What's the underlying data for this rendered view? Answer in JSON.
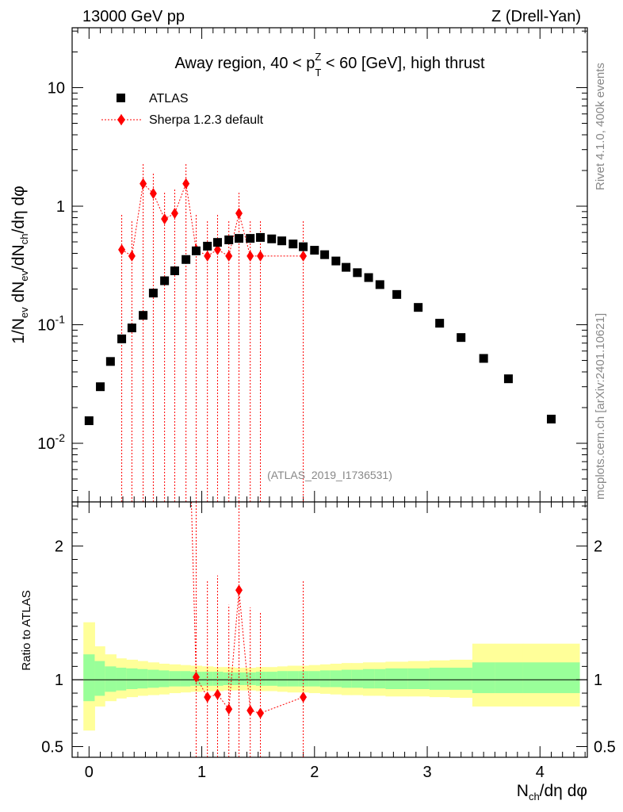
{
  "header": {
    "left": "13000 GeV pp",
    "right": "Z (Drell-Yan)"
  },
  "title": "Away region, 40 < p_T^Z < 60 [GeV], high thrust",
  "title_parts": {
    "pre": "Away region, 40 < p",
    "sup": "Z",
    "sub": "T",
    "post": " < 60 [GeV], high thrust"
  },
  "analysis_id": "(ATLAS_2019_I1736531)",
  "side_labels": {
    "rivet": "Rivet 4.1.0,  400k events",
    "site": "mcplots.cern.ch [arXiv:2401.10621]"
  },
  "legend": {
    "data_label": "ATLAS",
    "mc_label": "Sherpa 1.2.3 default",
    "placement": "top-left"
  },
  "colors": {
    "data": "#000000",
    "mc": "#ff0000",
    "band_inner": "#99ff99",
    "band_outer": "#ffff99"
  },
  "chart_data": [
    {
      "type": "scatter",
      "panel": "main",
      "yscale": "log",
      "xlabel": "N_ch/dη dφ",
      "ylabel": "1/N_ev dN_ev/dN_ch/dη dφ",
      "xlim": [
        -0.15,
        4.42
      ],
      "ylim": [
        0.0032,
        32
      ],
      "ytick_labels": [
        "10^-2",
        "10^-1",
        "1",
        "10"
      ],
      "xtick_labels": [
        "0",
        "1",
        "2",
        "3",
        "4"
      ],
      "series": [
        {
          "name": "ATLAS",
          "x": [
            0.0,
            0.1,
            0.19,
            0.29,
            0.38,
            0.48,
            0.57,
            0.67,
            0.76,
            0.86,
            0.95,
            1.05,
            1.14,
            1.24,
            1.33,
            1.43,
            1.52,
            1.62,
            1.71,
            1.81,
            1.9,
            2.0,
            2.09,
            2.19,
            2.28,
            2.38,
            2.48,
            2.58,
            2.73,
            2.92,
            3.11,
            3.3,
            3.5,
            3.72,
            4.1
          ],
          "y": [
            0.0155,
            0.03,
            0.049,
            0.076,
            0.094,
            0.12,
            0.185,
            0.235,
            0.285,
            0.355,
            0.42,
            0.46,
            0.495,
            0.52,
            0.535,
            0.535,
            0.545,
            0.53,
            0.51,
            0.48,
            0.455,
            0.425,
            0.39,
            0.345,
            0.305,
            0.275,
            0.25,
            0.218,
            0.18,
            0.14,
            0.103,
            0.078,
            0.052,
            0.035,
            0.016
          ]
        },
        {
          "name": "Sherpa 1.2.3 default",
          "x": [
            0.29,
            0.38,
            0.48,
            0.57,
            0.67,
            0.76,
            0.86,
            0.95,
            1.05,
            1.14,
            1.24,
            1.33,
            1.43,
            1.52,
            1.9
          ],
          "y": [
            0.43,
            0.38,
            1.55,
            1.28,
            0.78,
            0.87,
            1.55,
            0.43,
            0.38,
            0.43,
            0.38,
            0.87,
            0.38,
            0.38,
            0.38
          ],
          "err_lo": [
            0.43,
            0.38,
            1.55,
            1.28,
            0.78,
            0.87,
            1.55,
            0.43,
            0.38,
            0.43,
            0.38,
            0.87,
            0.38,
            0.38,
            0.38
          ],
          "err_hi": [
            0.43,
            0.38,
            0.75,
            0.62,
            0.55,
            0.52,
            0.75,
            0.43,
            0.38,
            0.43,
            0.38,
            0.43,
            0.38,
            0.38,
            0.38
          ]
        }
      ]
    },
    {
      "type": "scatter",
      "panel": "ratio",
      "ylabel": "Ratio to ATLAS",
      "xlabel": "N_ch/dη dφ",
      "xlim": [
        -0.15,
        4.42
      ],
      "ylim": [
        0.42,
        2.33
      ],
      "ytick_labels": [
        "0.5",
        "1",
        "2"
      ],
      "reference": 1.0,
      "series": [
        {
          "name": "Sherpa 1.2.3 default",
          "x": [
            0.95,
            1.05,
            1.14,
            1.24,
            1.33,
            1.43,
            1.52,
            1.9
          ],
          "y": [
            1.02,
            0.87,
            0.89,
            0.78,
            1.67,
            0.77,
            0.75,
            0.87
          ],
          "err_lo": [
            1.02,
            0.87,
            0.89,
            0.78,
            1.67,
            0.77,
            0.75,
            0.87
          ],
          "err_hi": [
            1.31,
            0.87,
            0.89,
            0.78,
            0.9,
            0.77,
            0.75,
            0.87
          ]
        }
      ],
      "band": {
        "edges": [
          -0.05,
          0.05,
          0.14,
          0.24,
          0.33,
          0.43,
          0.52,
          0.62,
          0.71,
          0.81,
          0.9,
          1.0,
          1.1,
          1.19,
          1.29,
          1.38,
          1.48,
          1.57,
          1.67,
          1.76,
          1.86,
          1.95,
          2.05,
          2.14,
          2.24,
          2.33,
          2.43,
          2.53,
          2.63,
          2.83,
          3.02,
          3.2,
          3.4,
          3.6,
          3.85,
          4.35
        ],
        "inner_lo": [
          0.84,
          0.88,
          0.91,
          0.92,
          0.93,
          0.935,
          0.94,
          0.945,
          0.95,
          0.95,
          0.955,
          0.955,
          0.955,
          0.96,
          0.96,
          0.96,
          0.955,
          0.955,
          0.95,
          0.95,
          0.95,
          0.95,
          0.945,
          0.945,
          0.94,
          0.94,
          0.935,
          0.935,
          0.93,
          0.93,
          0.925,
          0.925,
          0.9,
          0.9,
          0.9
        ],
        "inner_hi": [
          1.19,
          1.14,
          1.1,
          1.09,
          1.085,
          1.08,
          1.075,
          1.07,
          1.065,
          1.065,
          1.06,
          1.06,
          1.06,
          1.055,
          1.055,
          1.055,
          1.06,
          1.06,
          1.065,
          1.065,
          1.065,
          1.065,
          1.07,
          1.07,
          1.075,
          1.075,
          1.08,
          1.08,
          1.085,
          1.085,
          1.09,
          1.09,
          1.13,
          1.13,
          1.13
        ],
        "outer_lo": [
          0.62,
          0.8,
          0.84,
          0.86,
          0.87,
          0.88,
          0.885,
          0.89,
          0.9,
          0.905,
          0.91,
          0.915,
          0.915,
          0.92,
          0.92,
          0.92,
          0.915,
          0.915,
          0.91,
          0.905,
          0.905,
          0.9,
          0.895,
          0.89,
          0.885,
          0.885,
          0.88,
          0.88,
          0.875,
          0.875,
          0.87,
          0.865,
          0.8,
          0.8,
          0.8
        ],
        "outer_hi": [
          1.43,
          1.25,
          1.19,
          1.16,
          1.15,
          1.14,
          1.13,
          1.12,
          1.115,
          1.11,
          1.105,
          1.1,
          1.095,
          1.095,
          1.09,
          1.09,
          1.095,
          1.095,
          1.1,
          1.105,
          1.105,
          1.11,
          1.115,
          1.12,
          1.125,
          1.125,
          1.13,
          1.13,
          1.135,
          1.14,
          1.145,
          1.15,
          1.27,
          1.27,
          1.27
        ]
      }
    }
  ]
}
